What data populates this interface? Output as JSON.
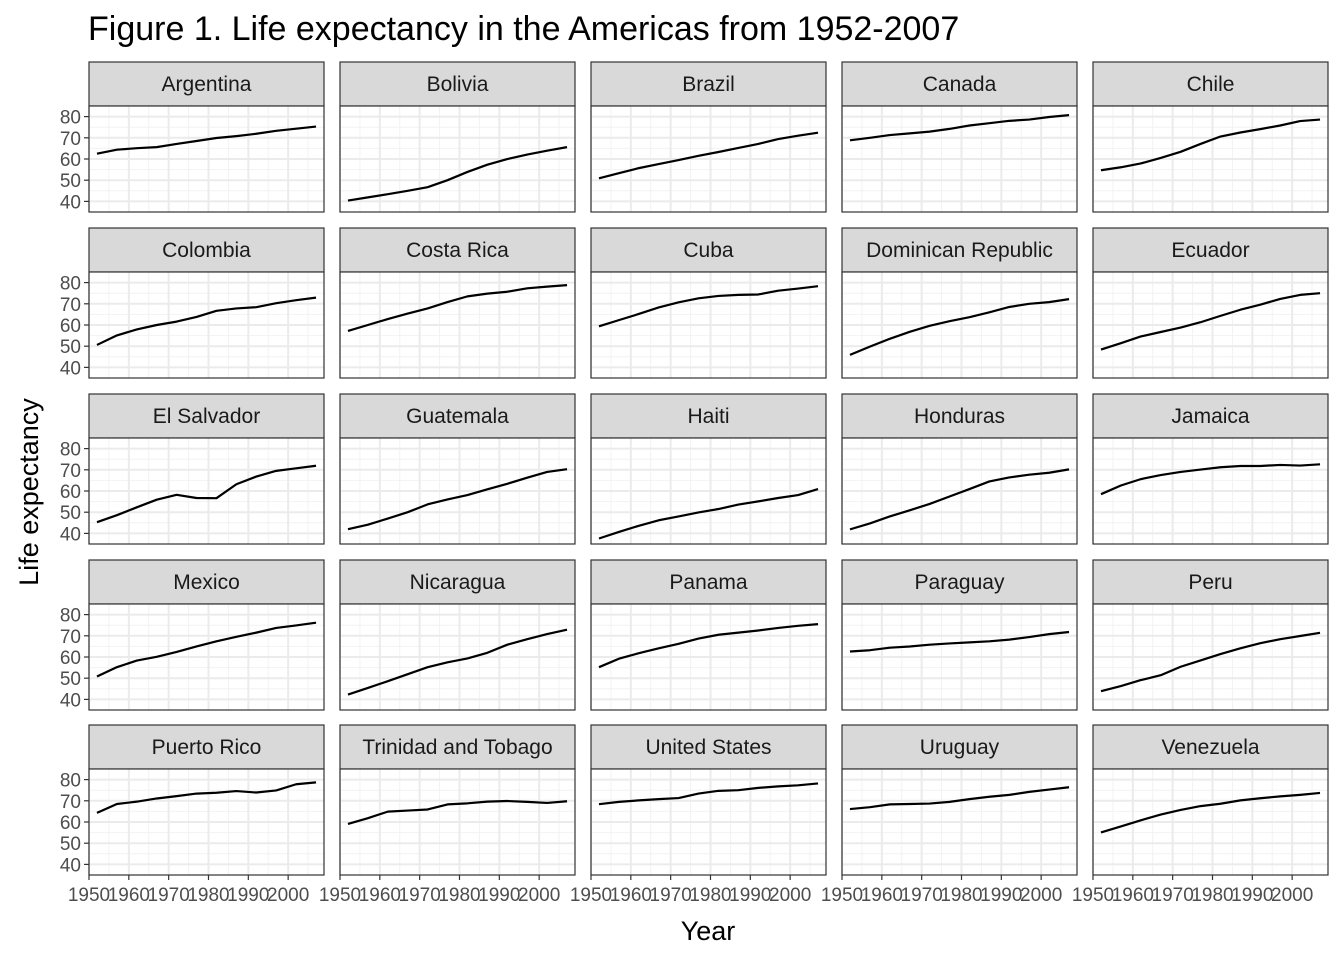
{
  "chart_data": {
    "type": "line",
    "title": "Figure 1. Life expectancy in the Americas from 1952-2007",
    "xlabel": "Year",
    "ylabel": "Life expectancy",
    "xlim": [
      1950,
      2009
    ],
    "ylim": [
      35,
      85
    ],
    "x_ticks": [
      1950,
      1960,
      1970,
      1980,
      1990,
      2000
    ],
    "y_ticks": [
      40,
      50,
      60,
      70,
      80
    ],
    "grid": true,
    "layout": "facet grid, 5 columns x 5 rows",
    "x": [
      1952,
      1957,
      1962,
      1967,
      1972,
      1977,
      1982,
      1987,
      1992,
      1997,
      2002,
      2007
    ],
    "series": [
      {
        "name": "Argentina",
        "values": [
          62.5,
          64.4,
          65.1,
          65.6,
          67.1,
          68.5,
          69.9,
          70.8,
          71.9,
          73.3,
          74.3,
          75.3
        ]
      },
      {
        "name": "Bolivia",
        "values": [
          40.4,
          41.9,
          43.4,
          45.0,
          46.7,
          50.0,
          53.9,
          57.3,
          59.96,
          62.1,
          63.9,
          65.6
        ]
      },
      {
        "name": "Brazil",
        "values": [
          50.9,
          53.3,
          55.7,
          57.6,
          59.5,
          61.5,
          63.3,
          65.2,
          67.1,
          69.4,
          71.0,
          72.4
        ]
      },
      {
        "name": "Canada",
        "values": [
          68.8,
          70.0,
          71.3,
          72.1,
          72.9,
          74.2,
          75.8,
          76.9,
          78.0,
          78.6,
          79.8,
          80.7
        ]
      },
      {
        "name": "Chile",
        "values": [
          54.7,
          56.1,
          57.9,
          60.5,
          63.4,
          67.1,
          70.6,
          72.5,
          74.1,
          75.8,
          77.9,
          78.6
        ]
      },
      {
        "name": "Colombia",
        "values": [
          50.6,
          55.1,
          57.9,
          60.0,
          61.6,
          63.8,
          66.7,
          67.8,
          68.4,
          70.3,
          71.7,
          72.9
        ]
      },
      {
        "name": "Costa Rica",
        "values": [
          57.2,
          60.0,
          62.8,
          65.4,
          67.8,
          70.8,
          73.5,
          74.8,
          75.7,
          77.3,
          78.1,
          78.8
        ]
      },
      {
        "name": "Cuba",
        "values": [
          59.4,
          62.3,
          65.2,
          68.3,
          70.7,
          72.6,
          73.7,
          74.2,
          74.4,
          76.2,
          77.2,
          78.3
        ]
      },
      {
        "name": "Dominican Republic",
        "values": [
          45.9,
          49.8,
          53.5,
          56.8,
          59.6,
          61.8,
          63.7,
          66.0,
          68.5,
          70.0,
          70.8,
          72.2
        ]
      },
      {
        "name": "Ecuador",
        "values": [
          48.4,
          51.4,
          54.6,
          56.7,
          58.8,
          61.3,
          64.3,
          67.2,
          69.6,
          72.3,
          74.2,
          75.0
        ]
      },
      {
        "name": "El Salvador",
        "values": [
          45.3,
          48.6,
          52.3,
          55.9,
          58.2,
          56.7,
          56.6,
          63.2,
          66.8,
          69.5,
          70.7,
          71.9
        ]
      },
      {
        "name": "Guatemala",
        "values": [
          42.0,
          44.1,
          47.0,
          50.0,
          53.7,
          56.0,
          58.1,
          60.8,
          63.4,
          66.3,
          68.98,
          70.3
        ]
      },
      {
        "name": "Haiti",
        "values": [
          37.6,
          40.7,
          43.6,
          46.2,
          48.0,
          49.9,
          51.5,
          53.6,
          55.1,
          56.7,
          58.1,
          60.9
        ]
      },
      {
        "name": "Honduras",
        "values": [
          41.9,
          44.7,
          48.0,
          50.9,
          53.9,
          57.4,
          60.9,
          64.5,
          66.4,
          67.7,
          68.6,
          70.2
        ]
      },
      {
        "name": "Jamaica",
        "values": [
          58.5,
          62.6,
          65.6,
          67.5,
          69.0,
          70.1,
          71.2,
          71.8,
          71.8,
          72.3,
          72.0,
          72.6
        ]
      },
      {
        "name": "Mexico",
        "values": [
          50.8,
          55.2,
          58.3,
          60.1,
          62.4,
          65.0,
          67.4,
          69.5,
          71.5,
          73.7,
          74.9,
          76.2
        ]
      },
      {
        "name": "Nicaragua",
        "values": [
          42.3,
          45.4,
          48.6,
          51.9,
          55.2,
          57.5,
          59.3,
          62.0,
          65.8,
          68.4,
          70.8,
          72.9
        ]
      },
      {
        "name": "Panama",
        "values": [
          55.2,
          59.2,
          61.8,
          64.1,
          66.2,
          68.7,
          70.5,
          71.5,
          72.5,
          73.7,
          74.7,
          75.5
        ]
      },
      {
        "name": "Paraguay",
        "values": [
          62.6,
          63.2,
          64.4,
          64.95,
          65.8,
          66.4,
          66.9,
          67.4,
          68.2,
          69.4,
          70.8,
          71.8
        ]
      },
      {
        "name": "Peru",
        "values": [
          43.9,
          46.3,
          49.1,
          51.4,
          55.4,
          58.4,
          61.4,
          64.1,
          66.5,
          68.4,
          69.9,
          71.4
        ]
      },
      {
        "name": "Puerto Rico",
        "values": [
          64.3,
          68.5,
          69.6,
          71.1,
          72.2,
          73.4,
          73.8,
          74.6,
          73.9,
          74.9,
          77.8,
          78.7
        ]
      },
      {
        "name": "Trinidad and Tobago",
        "values": [
          59.1,
          61.8,
          64.9,
          65.4,
          65.9,
          68.3,
          68.8,
          69.6,
          69.9,
          69.5,
          68.98,
          69.8
        ]
      },
      {
        "name": "United States",
        "values": [
          68.4,
          69.5,
          70.2,
          70.8,
          71.3,
          73.4,
          74.7,
          75.0,
          76.1,
          76.8,
          77.3,
          78.2
        ]
      },
      {
        "name": "Uruguay",
        "values": [
          66.1,
          67.0,
          68.3,
          68.5,
          68.7,
          69.5,
          70.8,
          71.9,
          72.8,
          74.2,
          75.3,
          76.4
        ]
      },
      {
        "name": "Venezuela",
        "values": [
          55.1,
          57.9,
          60.8,
          63.5,
          65.7,
          67.5,
          68.6,
          70.2,
          71.2,
          72.1,
          72.8,
          73.7
        ]
      }
    ]
  }
}
